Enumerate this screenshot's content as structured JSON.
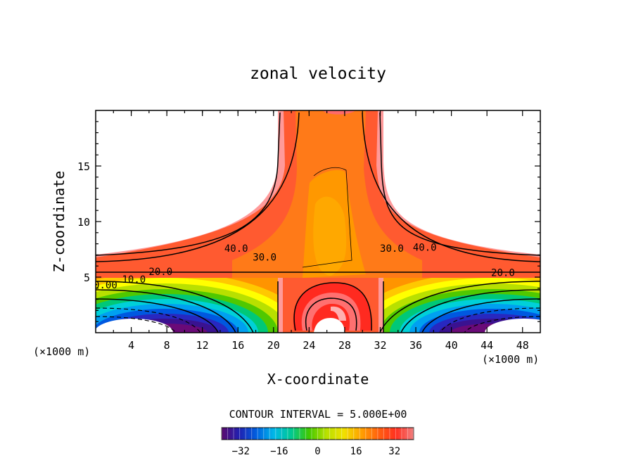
{
  "chart_data": {
    "type": "contour",
    "title": "zonal velocity",
    "xlabel": "X-coordinate",
    "ylabel": "Z-coordinate",
    "x_unit_left": "(×1000 m)",
    "x_unit_right": "(×1000 m)",
    "xlim": [
      0,
      50
    ],
    "ylim": [
      0,
      20
    ],
    "x_ticks": [
      4,
      8,
      12,
      16,
      20,
      24,
      28,
      32,
      36,
      40,
      44,
      48
    ],
    "x_tick_labels": [
      "4",
      "8",
      "12",
      "16",
      "20",
      "24",
      "28",
      "32",
      "36",
      "40",
      "44",
      "48"
    ],
    "y_ticks": [
      5,
      10,
      15
    ],
    "y_tick_labels": [
      "5",
      "10",
      "15"
    ],
    "contour_interval_text": "CONTOUR INTERVAL = 5.000E+00",
    "contour_labels": [
      {
        "text": "40.0",
        "x": 15.8,
        "z": 7.6
      },
      {
        "text": "30.0",
        "x": 19.0,
        "z": 6.8
      },
      {
        "text": "20.0",
        "x": 7.3,
        "z": 5.5
      },
      {
        "text": "10.0",
        "x": 4.3,
        "z": 4.8
      },
      {
        "text": "0.00",
        "x": 1.1,
        "z": 4.3
      },
      {
        "text": "30.0",
        "x": 33.3,
        "z": 7.6
      },
      {
        "text": "40.0",
        "x": 37.0,
        "z": 7.7
      },
      {
        "text": "20.0",
        "x": 45.8,
        "z": 5.4
      }
    ],
    "colorbar": {
      "min": -40,
      "max": 40,
      "ticks": [
        -32,
        -16,
        0,
        16,
        32
      ],
      "tick_labels": [
        "−32",
        "−16",
        "0",
        "16",
        "32"
      ],
      "colors": [
        "#5c0a6e",
        "#2020b0",
        "#0060e0",
        "#00b8e8",
        "#00c890",
        "#40c800",
        "#b8e000",
        "#f0e000",
        "#ffa000",
        "#ff6010",
        "#ff3020",
        "#f08080"
      ]
    }
  }
}
